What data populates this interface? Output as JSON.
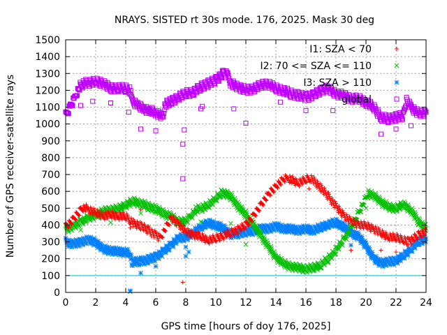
{
  "chart_data": {
    "type": "scatter",
    "title": "NRAYS. SISTED rt 30s mode. 176, 2025. Mask 30 deg",
    "xlabel": "GPS time [hours of doy 176, 2025]",
    "ylabel": "Number of GPS receiver-satellite rays",
    "xlim": [
      0,
      24
    ],
    "ylim": [
      0,
      1500
    ],
    "xticks": [
      "0",
      "2",
      "4",
      "6",
      "8",
      "10",
      "12",
      "14",
      "16",
      "18",
      "20",
      "22",
      "24"
    ],
    "yticks": [
      "0",
      "100",
      "200",
      "300",
      "400",
      "500",
      "600",
      "700",
      "800",
      "900",
      "1000",
      "1100",
      "1200",
      "1300",
      "1400",
      "1500"
    ],
    "grid": true,
    "legend_position": "top-right",
    "reference_line": {
      "y": 100,
      "color": "#00c0c0"
    },
    "series": [
      {
        "name": "I1: SZA < 70",
        "marker": "+",
        "color": "#ff0000",
        "points": [
          [
            0,
            390
          ],
          [
            0.5,
            430
          ],
          [
            1,
            490
          ],
          [
            1.2,
            505
          ],
          [
            1.5,
            495
          ],
          [
            2,
            470
          ],
          [
            2.5,
            455
          ],
          [
            3,
            460
          ],
          [
            3.5,
            455
          ],
          [
            4,
            450
          ],
          [
            4.3,
            430
          ],
          [
            4.5,
            410
          ],
          [
            5,
            395
          ],
          [
            5.5,
            370
          ],
          [
            6,
            340
          ],
          [
            6.3,
            320
          ],
          [
            7,
            440
          ],
          [
            7.5,
            410
          ],
          [
            8,
            360
          ],
          [
            8.5,
            345
          ],
          [
            9,
            330
          ],
          [
            9.5,
            310
          ],
          [
            10,
            320
          ],
          [
            10.5,
            340
          ],
          [
            11,
            355
          ],
          [
            11.5,
            370
          ],
          [
            12,
            400
          ],
          [
            12.5,
            450
          ],
          [
            13,
            520
          ],
          [
            13.5,
            580
          ],
          [
            14,
            630
          ],
          [
            14.5,
            670
          ],
          [
            14.8,
            680
          ],
          [
            15,
            670
          ],
          [
            15.5,
            650
          ],
          [
            16,
            670
          ],
          [
            16.3,
            680
          ],
          [
            16.5,
            665
          ],
          [
            17,
            620
          ],
          [
            17.5,
            570
          ],
          [
            18,
            510
          ],
          [
            18.5,
            460
          ],
          [
            19,
            420
          ],
          [
            19.5,
            405
          ],
          [
            20,
            395
          ],
          [
            20.5,
            380
          ],
          [
            21,
            350
          ],
          [
            21.5,
            330
          ],
          [
            22,
            325
          ],
          [
            22.5,
            315
          ],
          [
            22.8,
            300
          ],
          [
            23,
            310
          ],
          [
            23.5,
            340
          ],
          [
            24,
            360
          ]
        ]
      },
      {
        "name": "I2: 70 <= SZA <= 110",
        "marker": "x",
        "color": "#00c000",
        "points": [
          [
            0,
            375
          ],
          [
            0.5,
            390
          ],
          [
            1,
            420
          ],
          [
            1.5,
            440
          ],
          [
            2,
            460
          ],
          [
            2.5,
            480
          ],
          [
            3,
            490
          ],
          [
            3.5,
            495
          ],
          [
            4,
            520
          ],
          [
            4.5,
            540
          ],
          [
            5,
            530
          ],
          [
            5.5,
            510
          ],
          [
            6,
            495
          ],
          [
            6.5,
            470
          ],
          [
            7,
            450
          ],
          [
            7.5,
            420
          ],
          [
            8,
            420
          ],
          [
            8.3,
            450
          ],
          [
            8.7,
            490
          ],
          [
            9,
            500
          ],
          [
            9.5,
            515
          ],
          [
            10,
            560
          ],
          [
            10.3,
            585
          ],
          [
            10.5,
            590
          ],
          [
            11,
            570
          ],
          [
            11.5,
            510
          ],
          [
            12,
            460
          ],
          [
            12.5,
            400
          ],
          [
            13,
            340
          ],
          [
            13.5,
            270
          ],
          [
            14,
            210
          ],
          [
            14.5,
            170
          ],
          [
            15,
            155
          ],
          [
            15.5,
            145
          ],
          [
            16,
            140
          ],
          [
            16.5,
            145
          ],
          [
            17,
            165
          ],
          [
            17.5,
            200
          ],
          [
            18,
            250
          ],
          [
            18.5,
            310
          ],
          [
            19,
            380
          ],
          [
            19.5,
            470
          ],
          [
            20,
            560
          ],
          [
            20.2,
            590
          ],
          [
            20.5,
            575
          ],
          [
            21,
            540
          ],
          [
            21.5,
            505
          ],
          [
            22,
            500
          ],
          [
            22.5,
            520
          ],
          [
            23,
            490
          ],
          [
            23.5,
            420
          ],
          [
            24,
            380
          ]
        ]
      },
      {
        "name": "I3: SZA > 110",
        "marker": "*",
        "color": "#0080ff",
        "points": [
          [
            0,
            300
          ],
          [
            0.5,
            285
          ],
          [
            1,
            300
          ],
          [
            1.5,
            310
          ],
          [
            2,
            300
          ],
          [
            2.5,
            255
          ],
          [
            3,
            250
          ],
          [
            3.5,
            240
          ],
          [
            4,
            240
          ],
          [
            4.3,
            235
          ],
          [
            4.4,
            180
          ],
          [
            5,
            185
          ],
          [
            5.5,
            195
          ],
          [
            6,
            210
          ],
          [
            6.5,
            240
          ],
          [
            7,
            280
          ],
          [
            7.5,
            320
          ],
          [
            8,
            330
          ],
          [
            8.5,
            350
          ],
          [
            9,
            390
          ],
          [
            9.5,
            410
          ],
          [
            10,
            400
          ],
          [
            10.5,
            380
          ],
          [
            11,
            345
          ],
          [
            11.5,
            350
          ],
          [
            12,
            360
          ],
          [
            12.5,
            365
          ],
          [
            13,
            375
          ],
          [
            13.5,
            380
          ],
          [
            14,
            390
          ],
          [
            14.5,
            380
          ],
          [
            15,
            375
          ],
          [
            15.5,
            370
          ],
          [
            16,
            375
          ],
          [
            16.5,
            370
          ],
          [
            17,
            385
          ],
          [
            17.5,
            405
          ],
          [
            18,
            415
          ],
          [
            18.5,
            390
          ],
          [
            19,
            355
          ],
          [
            19.5,
            330
          ],
          [
            20,
            280
          ],
          [
            20.5,
            200
          ],
          [
            21,
            175
          ],
          [
            21.5,
            180
          ],
          [
            22,
            190
          ],
          [
            22.5,
            215
          ],
          [
            23,
            260
          ],
          [
            23.5,
            300
          ],
          [
            24,
            320
          ]
        ]
      },
      {
        "name": "global",
        "marker": "square",
        "color": "#c000ff",
        "points": [
          [
            0,
            1050
          ],
          [
            0.3,
            1100
          ],
          [
            0.6,
            1150
          ],
          [
            0.8,
            1200
          ],
          [
            1,
            1230
          ],
          [
            1.2,
            1240
          ],
          [
            1.5,
            1245
          ],
          [
            2,
            1250
          ],
          [
            2.5,
            1245
          ],
          [
            3,
            1210
          ],
          [
            3.5,
            1215
          ],
          [
            4,
            1210
          ],
          [
            4.3,
            1200
          ],
          [
            4.4,
            1140
          ],
          [
            4.8,
            1110
          ],
          [
            5.2,
            1090
          ],
          [
            5.6,
            1080
          ],
          [
            6,
            1070
          ],
          [
            6.5,
            1040
          ],
          [
            6.6,
            1120
          ],
          [
            7,
            1130
          ],
          [
            7.5,
            1160
          ],
          [
            8,
            1180
          ],
          [
            8.5,
            1190
          ],
          [
            9,
            1220
          ],
          [
            9.5,
            1240
          ],
          [
            10,
            1260
          ],
          [
            10.5,
            1300
          ],
          [
            10.8,
            1290
          ],
          [
            11,
            1240
          ],
          [
            11.5,
            1220
          ],
          [
            12,
            1200
          ],
          [
            12.5,
            1210
          ],
          [
            13,
            1230
          ],
          [
            13.5,
            1240
          ],
          [
            14,
            1210
          ],
          [
            14.5,
            1200
          ],
          [
            15,
            1180
          ],
          [
            15.5,
            1170
          ],
          [
            16,
            1160
          ],
          [
            16.5,
            1170
          ],
          [
            17,
            1200
          ],
          [
            17.5,
            1210
          ],
          [
            18,
            1180
          ],
          [
            18.5,
            1170
          ],
          [
            19,
            1150
          ],
          [
            19.5,
            1150
          ],
          [
            20,
            1130
          ],
          [
            20.5,
            1100
          ],
          [
            21,
            1040
          ],
          [
            21.5,
            1030
          ],
          [
            22,
            1040
          ],
          [
            22.5,
            1050
          ],
          [
            22.7,
            1140
          ],
          [
            23,
            1100
          ],
          [
            23.5,
            1060
          ],
          [
            24,
            1070
          ]
        ]
      }
    ],
    "outliers": [
      {
        "series": "global",
        "points": [
          [
            1,
            1110
          ],
          [
            1.8,
            1135
          ],
          [
            3,
            1125
          ],
          [
            4.2,
            1070
          ],
          [
            5,
            970
          ],
          [
            6,
            960
          ],
          [
            7.8,
            880
          ],
          [
            7.8,
            675
          ],
          [
            7.9,
            965
          ],
          [
            9,
            1090
          ],
          [
            9.1,
            1105
          ],
          [
            11.2,
            1090
          ],
          [
            12,
            1005
          ],
          [
            14.3,
            1130
          ],
          [
            16,
            1080
          ],
          [
            17.8,
            1080
          ],
          [
            20,
            1105
          ],
          [
            21,
            940
          ],
          [
            22,
            970
          ],
          [
            23,
            990
          ]
        ]
      },
      {
        "series": "I1: SZA < 70",
        "points": [
          [
            4.3,
            385
          ],
          [
            5,
            490
          ],
          [
            7.8,
            60
          ],
          [
            12,
            390
          ],
          [
            15.2,
            670
          ],
          [
            16.2,
            615
          ],
          [
            19,
            250
          ],
          [
            21,
            250
          ],
          [
            22,
            240
          ]
        ]
      },
      {
        "series": "I2: 70 <= SZA <= 110",
        "points": [
          [
            1,
            370
          ],
          [
            3,
            415
          ],
          [
            4.3,
            5
          ],
          [
            5,
            470
          ],
          [
            5.5,
            490
          ],
          [
            6,
            480
          ],
          [
            9,
            420
          ],
          [
            11,
            410
          ],
          [
            12,
            285
          ],
          [
            20,
            500
          ]
        ]
      },
      {
        "series": "I3: SZA > 110",
        "points": [
          [
            4.3,
            10
          ],
          [
            5,
            115
          ],
          [
            6,
            155
          ],
          [
            8,
            215
          ],
          [
            8,
            270
          ],
          [
            8.2,
            240
          ],
          [
            19,
            280
          ],
          [
            23,
            245
          ]
        ]
      }
    ]
  }
}
